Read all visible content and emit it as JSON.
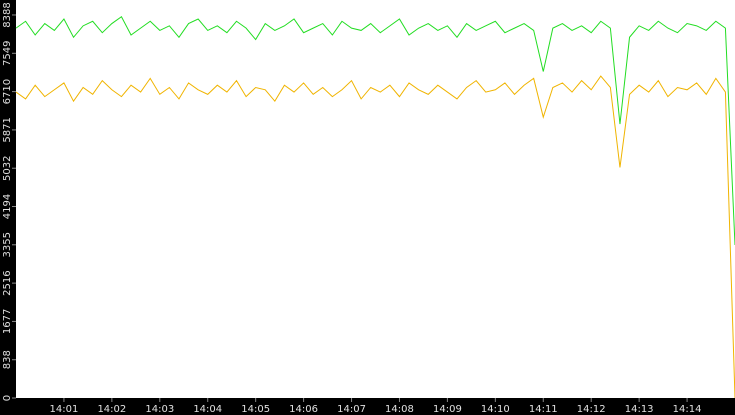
{
  "chart_data": {
    "type": "line",
    "x": [
      0,
      0.2,
      0.4,
      0.6,
      0.8,
      1,
      1.2,
      1.4,
      1.6,
      1.8,
      2,
      2.2,
      2.4,
      2.6,
      2.8,
      3,
      3.2,
      3.4,
      3.6,
      3.8,
      4,
      4.2,
      4.4,
      4.6,
      4.8,
      5,
      5.2,
      5.4,
      5.6,
      5.8,
      6,
      6.2,
      6.4,
      6.6,
      6.8,
      7,
      7.2,
      7.4,
      7.6,
      7.8,
      8,
      8.2,
      8.4,
      8.6,
      8.8,
      9,
      9.2,
      9.4,
      9.6,
      9.8,
      10,
      10.2,
      10.4,
      10.6,
      10.8,
      11,
      11.2,
      11.4,
      11.6,
      11.8,
      12,
      12.2,
      12.4,
      12.6,
      12.8,
      13,
      13.2,
      13.4,
      13.6,
      13.8,
      14,
      14.2,
      14.4,
      14.6,
      14.8,
      15
    ],
    "series": [
      {
        "color": "#22dd22",
        "values": [
          8100,
          8250,
          7950,
          8200,
          8050,
          8300,
          7900,
          8150,
          8250,
          8000,
          8200,
          8350,
          7950,
          8100,
          8250,
          8050,
          8150,
          7900,
          8200,
          8300,
          8050,
          8150,
          8000,
          8250,
          8100,
          7850,
          8200,
          8050,
          8150,
          8300,
          8000,
          8100,
          8200,
          7950,
          8250,
          8100,
          8050,
          8200,
          8000,
          8150,
          8300,
          7950,
          8100,
          8200,
          8050,
          8150,
          7900,
          8200,
          8050,
          8150,
          8250,
          8000,
          8100,
          8200,
          8050,
          7150,
          8100,
          8200,
          8050,
          8150,
          8000,
          8250,
          8100,
          6000,
          7900,
          8150,
          8050,
          8250,
          8100,
          8000,
          8200,
          8150,
          8050,
          8250,
          8100,
          3350
        ]
      },
      {
        "color": "#f0b400",
        "values": [
          6700,
          6550,
          6850,
          6600,
          6750,
          6900,
          6500,
          6800,
          6650,
          6950,
          6750,
          6600,
          6850,
          6700,
          7000,
          6650,
          6800,
          6550,
          6900,
          6750,
          6650,
          6850,
          6700,
          6950,
          6600,
          6800,
          6750,
          6500,
          6850,
          6700,
          6900,
          6650,
          6800,
          6600,
          6750,
          6950,
          6550,
          6800,
          6700,
          6850,
          6600,
          6900,
          6750,
          6650,
          6850,
          6700,
          6550,
          6800,
          6950,
          6700,
          6750,
          6900,
          6650,
          6850,
          7000,
          6150,
          6800,
          6900,
          6700,
          6950,
          6750,
          7050,
          6800,
          5050,
          6650,
          6850,
          6700,
          6950,
          6600,
          6800,
          6750,
          6900,
          6650,
          7000,
          6700,
          0
        ]
      }
    ],
    "xlim": [
      0,
      15
    ],
    "xticks": [
      {
        "value": 1,
        "label": "14:01"
      },
      {
        "value": 2,
        "label": "14:02"
      },
      {
        "value": 3,
        "label": "14:03"
      },
      {
        "value": 4,
        "label": "14:04"
      },
      {
        "value": 5,
        "label": "14:05"
      },
      {
        "value": 6,
        "label": "14:06"
      },
      {
        "value": 7,
        "label": "14:07"
      },
      {
        "value": 8,
        "label": "14:08"
      },
      {
        "value": 9,
        "label": "14:09"
      },
      {
        "value": 10,
        "label": "14:10"
      },
      {
        "value": 11,
        "label": "14:11"
      },
      {
        "value": 12,
        "label": "14:12"
      },
      {
        "value": 13,
        "label": "14:13"
      },
      {
        "value": 14,
        "label": "14:14"
      }
    ],
    "ylim": [
      0,
      8716
    ],
    "yticks": [
      0,
      838,
      1677,
      2516,
      3355,
      4194,
      5032,
      5871,
      6710,
      7549,
      8388
    ]
  }
}
